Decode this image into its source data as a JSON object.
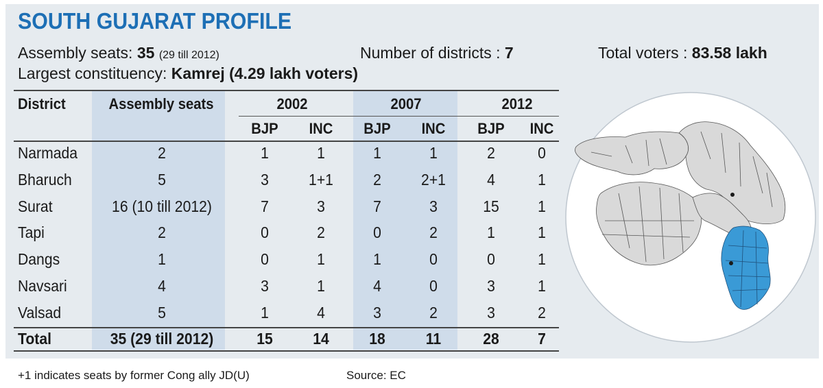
{
  "title": "SOUTH GUJARAT PROFILE",
  "info": {
    "assembly_label": "Assembly seats: ",
    "assembly_value": "35",
    "assembly_note": "(29 till 2012)",
    "districts_label": "Number of districts : ",
    "districts_value": "7",
    "voters_label": "Total voters : ",
    "voters_value": "83.58 lakh",
    "largest_label": "Largest constituency: ",
    "largest_value": "Kamrej (4.29 lakh voters)"
  },
  "table": {
    "headers": {
      "district": "District",
      "seats": "Assembly seats",
      "y2002": "2002",
      "y2007": "2007",
      "y2012": "2012",
      "bjp": "BJP",
      "inc": "INC"
    },
    "rows": [
      {
        "district": "Narmada",
        "seats": "2",
        "b02": "1",
        "i02": "1",
        "b07": "1",
        "i07": "1",
        "b12": "2",
        "i12": "0"
      },
      {
        "district": "Bharuch",
        "seats": "5",
        "b02": "3",
        "i02": "1+1",
        "b07": "2",
        "i07": "2+1",
        "b12": "4",
        "i12": "1"
      },
      {
        "district": "Surat",
        "seats": "16 (10 till 2012)",
        "b02": "7",
        "i02": "3",
        "b07": "7",
        "i07": "3",
        "b12": "15",
        "i12": "1"
      },
      {
        "district": "Tapi",
        "seats": "2",
        "b02": "0",
        "i02": "2",
        "b07": "0",
        "i07": "2",
        "b12": "1",
        "i12": "1"
      },
      {
        "district": "Dangs",
        "seats": "1",
        "b02": "0",
        "i02": "1",
        "b07": "1",
        "i07": "0",
        "b12": "0",
        "i12": "1"
      },
      {
        "district": "Navsari",
        "seats": "4",
        "b02": "3",
        "i02": "1",
        "b07": "4",
        "i07": "0",
        "b12": "3",
        "i12": "1"
      },
      {
        "district": "Valsad",
        "seats": "5",
        "b02": "1",
        "i02": "4",
        "b07": "3",
        "i07": "2",
        "b12": "3",
        "i12": "2"
      }
    ],
    "total": {
      "district": "Total",
      "seats": "35 (29 till 2012)",
      "b02": "15",
      "i02": "14",
      "b07": "18",
      "i07": "11",
      "b12": "28",
      "i12": "7"
    }
  },
  "footnotes": {
    "left": "+1 indicates seats by former Cong ally JD(U)",
    "right": "Source: EC"
  },
  "colors": {
    "title": "#1d6fb5",
    "panel": "#e6ebef",
    "band": "#cfdcea",
    "highlight": "#3a9ad6",
    "map_fill": "#d9d9d9"
  }
}
